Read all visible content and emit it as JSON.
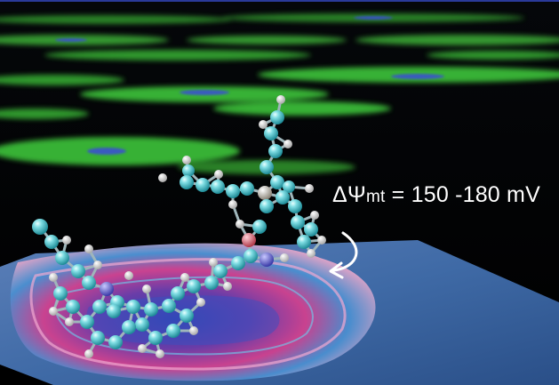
{
  "annotation": {
    "symbol": "ΔΨ",
    "subscript": "mt",
    "value_text": " = 150 -180 mV"
  },
  "colors": {
    "background": "#000000",
    "mitochondria_fluorescence": "#3ec43a",
    "mito_core": "#3a4bd8",
    "membrane_surface": "#3b5fa8",
    "membrane_pink": "#d94f9a",
    "atom_carbon": "#52c6cf",
    "atom_hydrogen": "#e4e4e4",
    "atom_nitrogen": "#5656c8",
    "atom_oxygen": "#d9606e",
    "atom_phosphorus": "#bdb7ad",
    "label": "#ffffff"
  },
  "icons": {
    "arrow": "curved-arrow-icon"
  }
}
